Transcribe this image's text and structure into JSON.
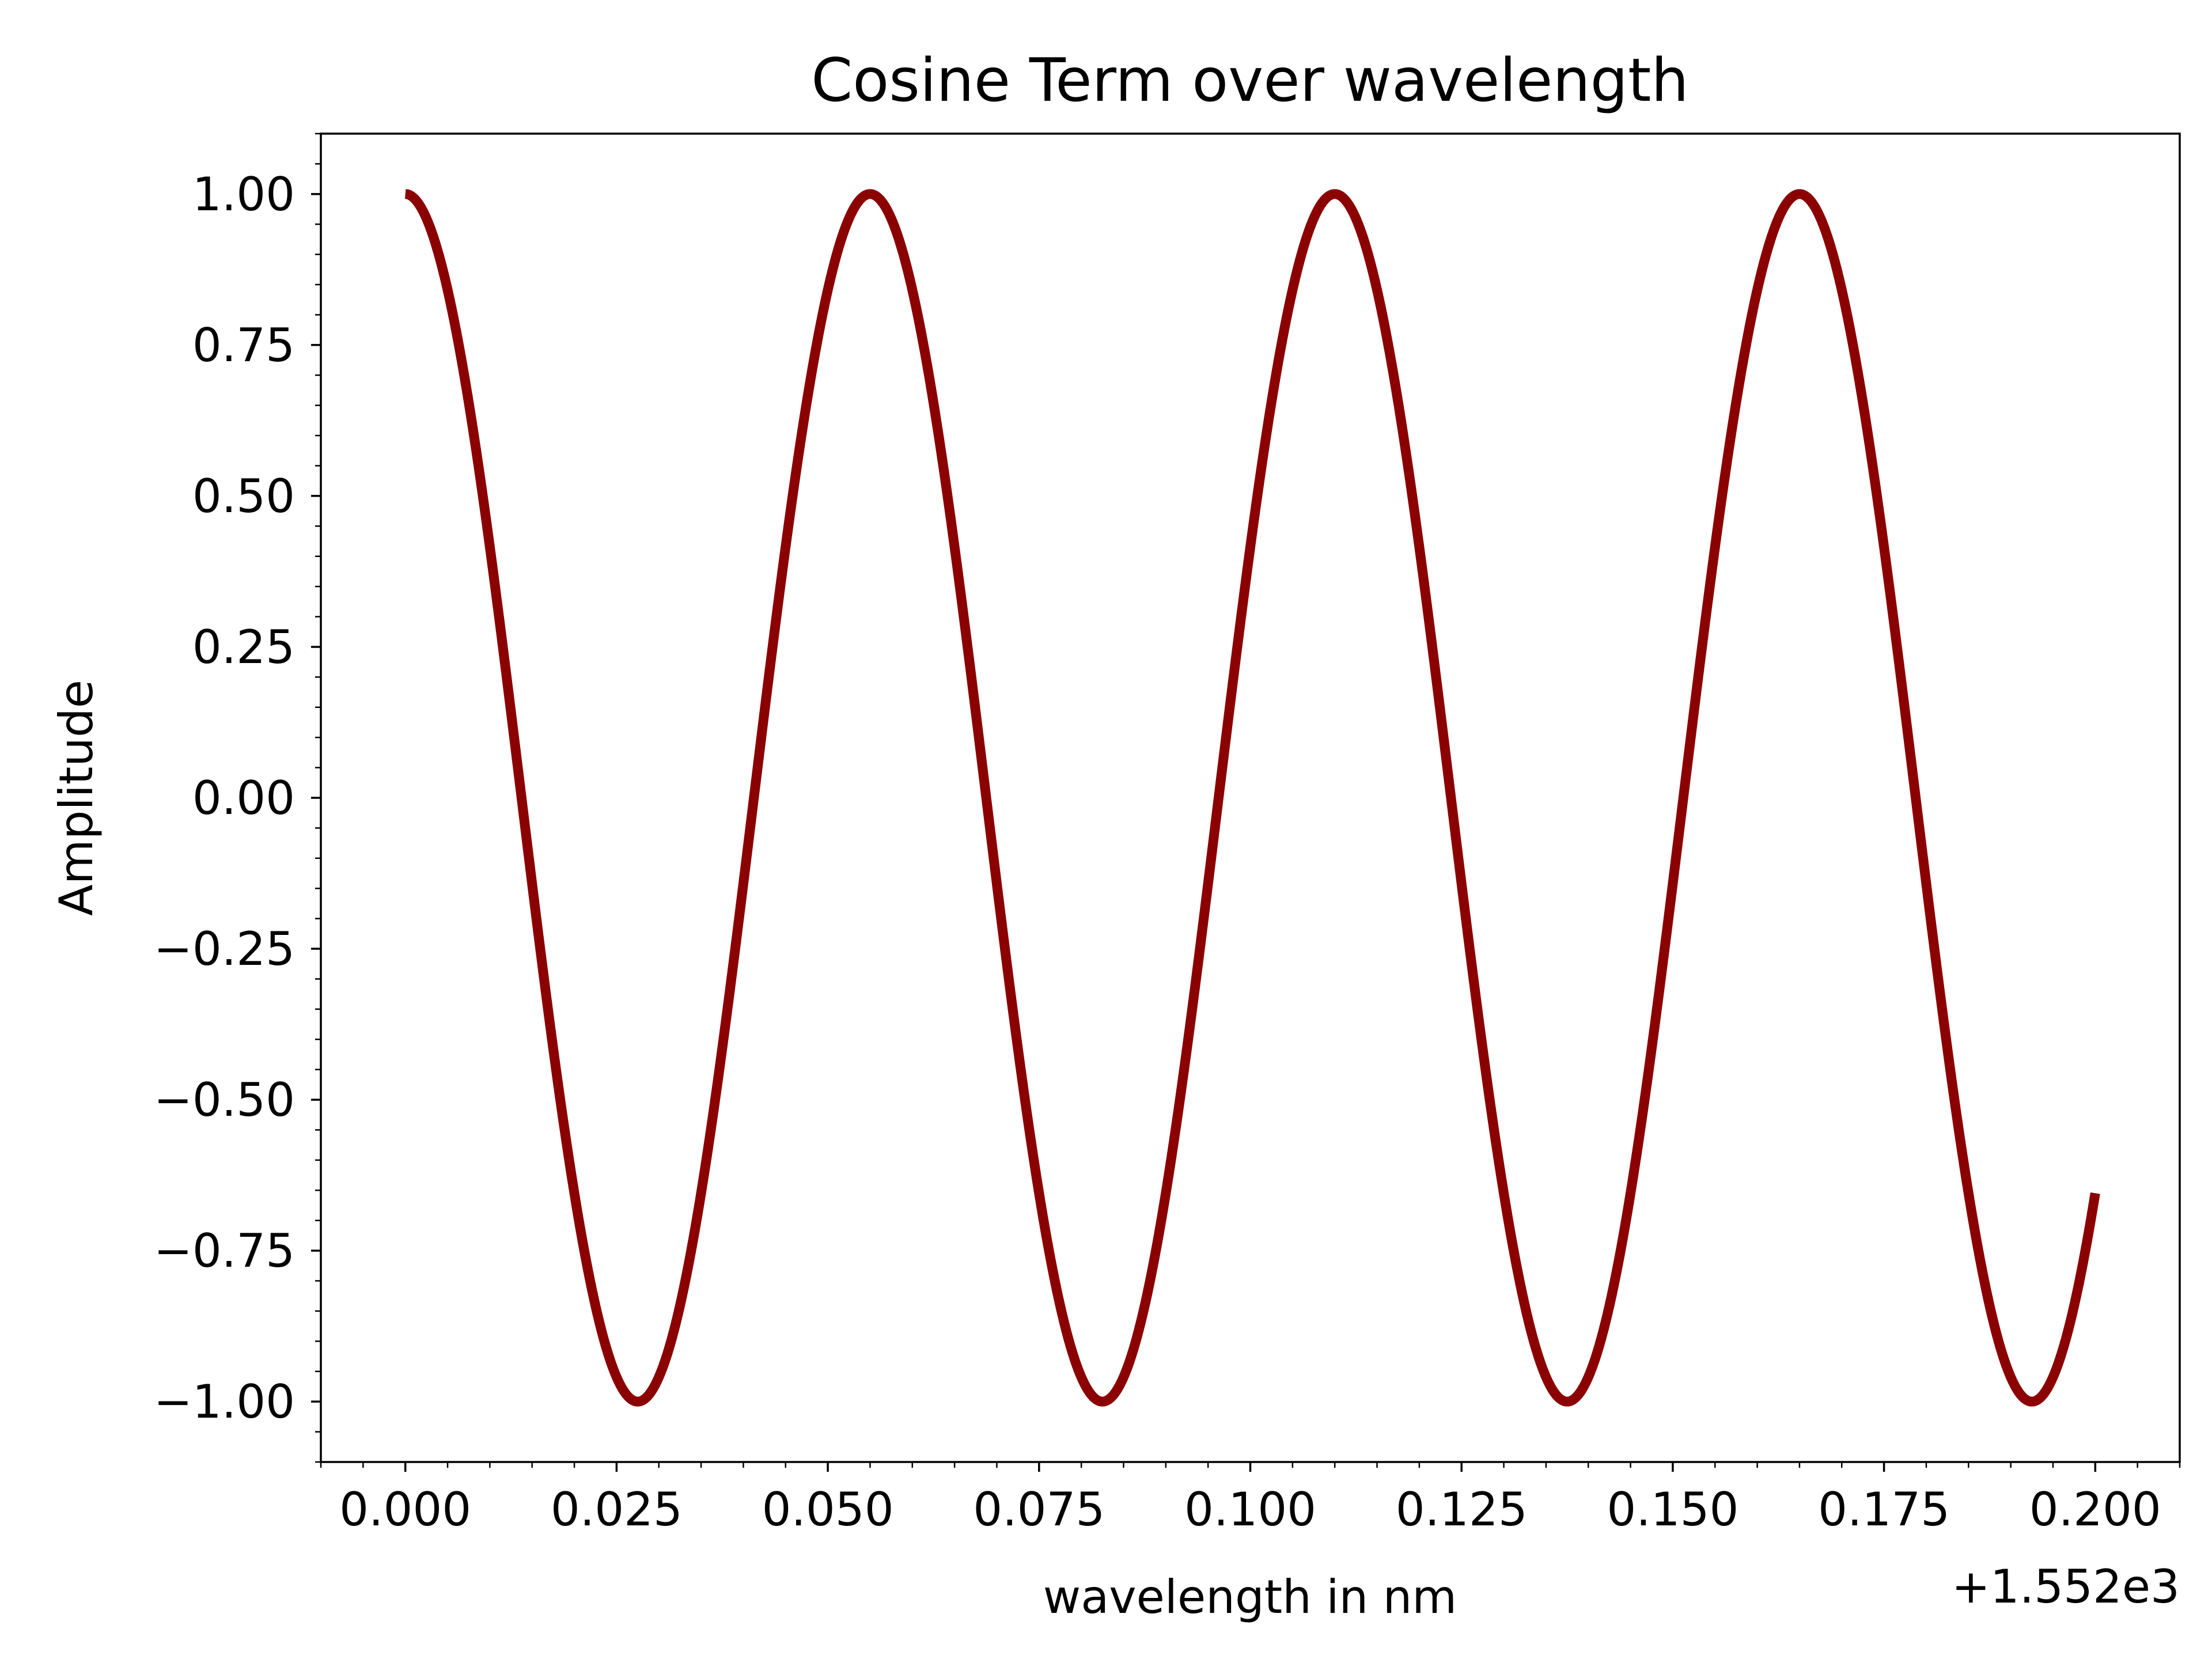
{
  "chart_data": {
    "type": "line",
    "title": "Cosine Term over wavelength",
    "xlabel": "wavelength in nm",
    "ylabel": "Amplitude",
    "x_offset_text": "+1.552e3",
    "x_offset": 1552,
    "xlim": [
      1551.99,
      1552.21
    ],
    "ylim": [
      -1.1,
      1.1
    ],
    "x_ticks": [
      1552.0,
      1552.025,
      1552.05,
      1552.075,
      1552.1,
      1552.125,
      1552.15,
      1552.175,
      1552.2
    ],
    "x_tick_labels": [
      "0.000",
      "0.025",
      "0.050",
      "0.075",
      "0.100",
      "0.125",
      "0.150",
      "0.175",
      "0.200"
    ],
    "y_ticks": [
      1.0,
      0.75,
      0.5,
      0.25,
      0.0,
      -0.25,
      -0.5,
      -0.75,
      -1.0
    ],
    "y_tick_labels": [
      "1.00",
      "0.75",
      "0.50",
      "0.25",
      "0.00",
      "−0.25",
      "−0.50",
      "−0.75",
      "−1.00"
    ],
    "grid": false,
    "series": [
      {
        "color": "#8b0000",
        "x": [
          1552.0,
          1552.0275,
          1552.055,
          1552.0825,
          1552.11,
          1552.1375,
          1552.165,
          1552.1925,
          1552.2
        ],
        "y": [
          1.0,
          -1.0,
          1.0,
          -1.0,
          1.0,
          -1.0,
          1.0,
          -1.0,
          -0.6
        ]
      }
    ]
  }
}
